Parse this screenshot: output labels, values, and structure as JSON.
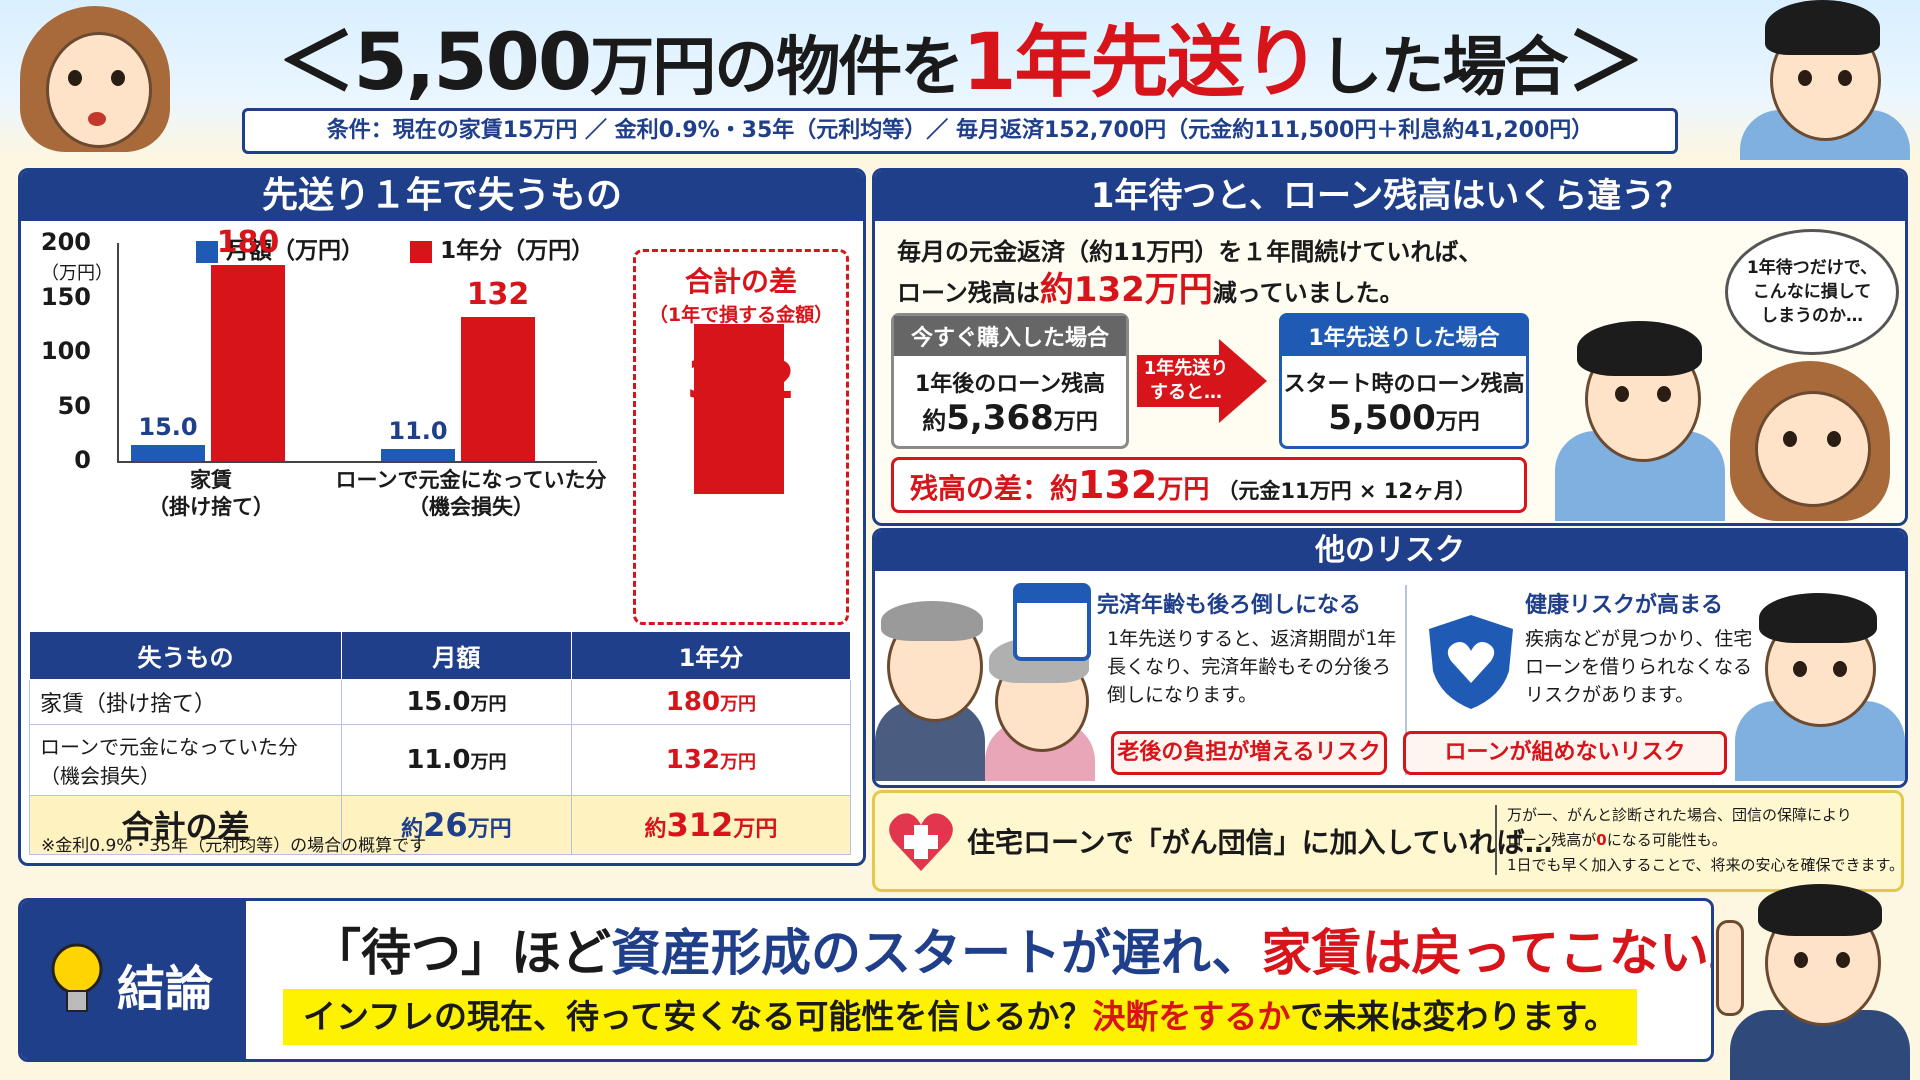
{
  "header": {
    "title_open": "＜",
    "title_price": "5,500",
    "title_mid": "万円の物件を",
    "title_red": "1年先送り",
    "title_end": "した場合",
    "title_close": "＞",
    "conditions": "条件：現在の家賃15万円 ／ 金利0.9%・35年（元利均等）／ 毎月返済152,700円（元金約111,500円＋利息約41,200円）"
  },
  "left_panel": {
    "title": "先送り１年で失うもの",
    "legend_monthly": "月額（万円）",
    "legend_yearly": "1年分（万円）",
    "unit_label": "（万円）",
    "total_box": {
      "line1": "合計の差",
      "line2": "（1年で損する金額）",
      "unit": "万円",
      "value": "312"
    },
    "table": {
      "headers": [
        "失うもの",
        "月額",
        "1年分"
      ],
      "rows": [
        {
          "item": "家賃（掛け捨て）",
          "monthly": "15.0",
          "yearly": "180",
          "unit": "万円"
        },
        {
          "item": "ローンで元金になっていた分（機会損失）",
          "monthly": "11.0",
          "yearly": "132",
          "unit": "万円"
        }
      ],
      "total": {
        "label": "合計の差",
        "monthly_prefix": "約",
        "monthly": "26",
        "yearly_prefix": "約",
        "yearly": "312",
        "unit": "万円"
      }
    },
    "footnote": "※金利0.9%・35年（元利均等）の場合の概算です"
  },
  "chart_data": {
    "type": "bar",
    "categories": [
      "家賃\n（掛け捨て）",
      "ローンで元金になっていた分\n（機会損失）"
    ],
    "series": [
      {
        "name": "月額（万円）",
        "values": [
          15.0,
          11.0
        ],
        "color": "#1f5bb5"
      },
      {
        "name": "1年分（万円）",
        "values": [
          180,
          132
        ],
        "color": "#d7141a"
      }
    ],
    "value_labels": [
      [
        "15.0",
        "11.0"
      ],
      [
        "180",
        "132"
      ]
    ],
    "total": {
      "value": 312,
      "color": "#d7141a"
    },
    "ylabel": "（万円）",
    "ylim": [
      0,
      200
    ],
    "yticks": [
      0,
      50,
      100,
      150,
      200
    ],
    "legend": "top"
  },
  "right_top": {
    "title": "1年待つと、ローン残高はいくら違う？",
    "intro_line1": "毎月の元金返済（約11万円）を１年間続けていれば、",
    "intro_line2a": "ローン残高は",
    "intro_line2b": "約132万円",
    "intro_line2c": "減っていました。",
    "buy_now": {
      "head": "今すぐ購入した場合",
      "line1": "1年後のローン残高",
      "prefix": "約",
      "value": "5,368",
      "unit": "万円"
    },
    "arrow_text": "1年先送りすると…",
    "delay": {
      "head": "1年先送りした場合",
      "line1": "スタート時のローン残高",
      "value": "5,500",
      "unit": "万円"
    },
    "diff_label": "残高の差：約",
    "diff_value": "132",
    "diff_unit": "万円",
    "diff_note": "（元金11万円 × 12ヶ月）",
    "thought": "1年待つだけで、こんなに損してしまうのか…"
  },
  "risk": {
    "title": "他のリスク",
    "r1_head": "完済年齢も後ろ倒しになる",
    "r1_body": "1年先送りすると、返済期間が1年長くなり、完済年齢もその分後ろ倒しになります。",
    "r1_tag": "老後の負担が増えるリスク",
    "r2_head": "健康リスクが高まる",
    "r2_body": "疾病などが見つかり、住宅ローンを借りられなくなるリスクがあります。",
    "r2_tag": "ローンが組めないリスク"
  },
  "cancer": {
    "lead": "住宅ローンで「がん団信」に加入していれば…",
    "note1": "万が一、がんと診断された場合、団信の保障により",
    "note2a": "ローン残高が",
    "note2b": "0",
    "note2c": "になる可能性も。",
    "note3": "1日でも早く加入することで、将来の安心を確保できます。"
  },
  "conclusion": {
    "label": "結論",
    "line1a": "「待つ」ほど",
    "line1b": "資産形成のスタートが遅れ、",
    "line1c": "家賃は戻ってこない。",
    "line2a": "インフレの現在、待って安くなる可能性を信じるか？",
    "line2b": "決断をするか",
    "line2c": "で未来は変わります。"
  },
  "colors": {
    "navy": "#1f3f8a",
    "red": "#d7141a",
    "blue_bar": "#1f5bb5",
    "cream": "#fdf6e0",
    "yellow": "#fff200"
  },
  "icons": [
    "woman-surprised-illustration",
    "man-thinking-illustration",
    "couple-worried-illustration",
    "elderly-couple-illustration",
    "calendar-icon",
    "heart-shield-icon",
    "heart-plus-icon",
    "lightbulb-icon",
    "man-pointing-illustration",
    "man-worried-illustration",
    "red-arrow-icon"
  ]
}
